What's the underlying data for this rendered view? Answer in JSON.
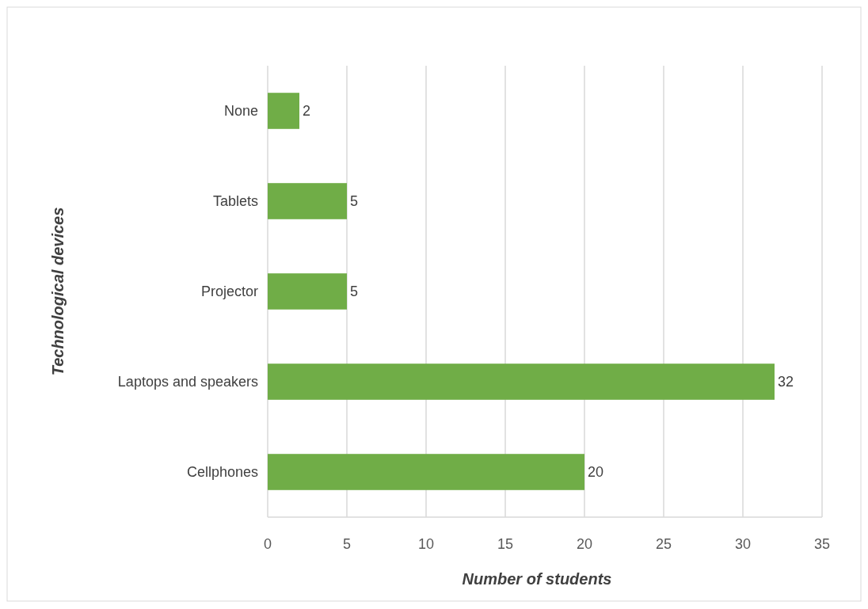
{
  "chart_data": {
    "type": "bar",
    "orientation": "horizontal",
    "xlabel": "Number of students",
    "ylabel": "Technological devices",
    "categories": [
      "None",
      "Tablets",
      "Projector",
      "Laptops and speakers",
      "Cellphones"
    ],
    "values": [
      2,
      5,
      5,
      32,
      20
    ],
    "color": "#70ad47",
    "data_labels": true,
    "xlim": [
      0,
      35
    ],
    "xticks": [
      0,
      5,
      10,
      15,
      20,
      25,
      30,
      35
    ],
    "grid": "x"
  }
}
